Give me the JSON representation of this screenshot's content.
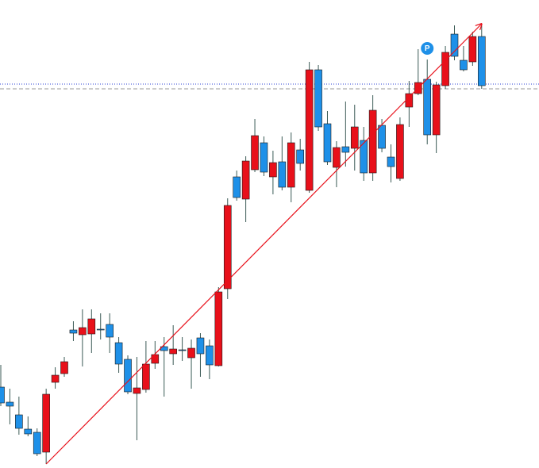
{
  "chart_data": {
    "type": "candlestick",
    "open": [
      102,
      83,
      67,
      49,
      45,
      20,
      108,
      119,
      174,
      168,
      169,
      175,
      181,
      158,
      137,
      94,
      99,
      132,
      153,
      144,
      149,
      139,
      164,
      154,
      129,
      226,
      367,
      339,
      376,
      410,
      367,
      386,
      354,
      401,
      350,
      502,
      434,
      379,
      405,
      403,
      413,
      372,
      432,
      392,
      365,
      455,
      472,
      490,
      420,
      482,
      547,
      514,
      512,
      544
    ],
    "high": [
      130,
      100,
      90,
      65,
      50,
      100,
      127,
      140,
      185,
      200,
      200,
      195,
      195,
      165,
      142,
      140,
      160,
      160,
      165,
      180,
      165,
      162,
      170,
      162,
      228,
      340,
      375,
      393,
      440,
      418,
      400,
      418,
      423,
      415,
      512,
      508,
      450,
      412,
      462,
      458,
      430,
      470,
      440,
      408,
      442,
      488,
      528,
      515,
      487,
      532,
      558,
      532,
      550,
      558
    ],
    "low": [
      78,
      55,
      42,
      40,
      15,
      5,
      100,
      115,
      160,
      128,
      145,
      162,
      145,
      120,
      93,
      35,
      95,
      125,
      90,
      130,
      135,
      100,
      115,
      112,
      128,
      213,
      337,
      310,
      373,
      368,
      345,
      350,
      335,
      375,
      347,
      425,
      382,
      354,
      380,
      375,
      362,
      362,
      398,
      360,
      362,
      430,
      470,
      408,
      397,
      478,
      514,
      500,
      507,
      478
    ],
    "close": [
      82,
      78,
      50,
      43,
      18,
      93,
      117,
      134,
      170,
      177,
      188,
      174,
      165,
      131,
      96,
      101,
      131,
      143,
      148,
      150,
      148,
      151,
      144,
      130,
      222,
      331,
      341,
      387,
      419,
      373,
      385,
      354,
      410,
      384,
      502,
      430,
      386,
      404,
      398,
      430,
      372,
      451,
      403,
      380,
      433,
      472,
      486,
      420,
      483,
      524,
      519,
      502,
      544,
      482
    ],
    "up_color": "#e8101a",
    "down_color": "#1e90e8",
    "ylim": [
      0,
      590
    ],
    "levels": [
      {
        "value": 484,
        "color": "#2a3fd6",
        "style": "dotted"
      },
      {
        "value": 478,
        "color": "#9a9a9a",
        "style": "dashed"
      }
    ],
    "trendline": {
      "x": [
        5,
        53
      ],
      "values": [
        5,
        560
      ],
      "color": "#e8101a"
    },
    "annotation": {
      "text": "P",
      "x": 47,
      "value": 529,
      "color": "#1e90e8"
    }
  }
}
